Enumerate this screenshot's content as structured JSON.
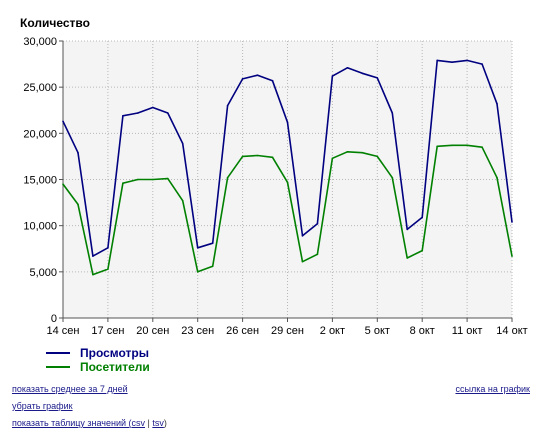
{
  "chart_data": {
    "type": "line",
    "ylabel": "Количество",
    "ylim": [
      0,
      30000
    ],
    "yticks": [
      "0",
      "5,000",
      "10,000",
      "15,000",
      "20,000",
      "25,000",
      "30,000"
    ],
    "ytick_values": [
      0,
      5000,
      10000,
      15000,
      20000,
      25000,
      30000
    ],
    "xtick_labels": [
      "14 сен",
      "17 сен",
      "20 сен",
      "23 сен",
      "26 сен",
      "29 сен",
      "2 окт",
      "5 окт",
      "8 окт",
      "11 окт",
      "14 окт"
    ],
    "x": [
      "14 сен",
      "15 сен",
      "16 сен",
      "17 сен",
      "18 сен",
      "19 сен",
      "20 сен",
      "21 сен",
      "22 сен",
      "23 сен",
      "24 сен",
      "25 сен",
      "26 сен",
      "27 сен",
      "28 сен",
      "29 сен",
      "30 сен",
      "1 окт",
      "2 окт",
      "3 окт",
      "4 окт",
      "5 окт",
      "6 окт",
      "7 окт",
      "8 окт",
      "9 окт",
      "10 окт",
      "11 окт",
      "12 окт",
      "13 окт",
      "14 окт"
    ],
    "grid": true,
    "legend_position": "bottom-left",
    "series": [
      {
        "name": "Просмотры",
        "color": "#000080",
        "values": [
          21300,
          17900,
          6700,
          7600,
          21900,
          22200,
          22800,
          22200,
          18900,
          7600,
          8100,
          23000,
          25900,
          26300,
          25700,
          21200,
          8900,
          10200,
          26200,
          27100,
          26500,
          26000,
          22200,
          9600,
          10900,
          27900,
          27700,
          27900,
          27500,
          23200,
          10400
        ]
      },
      {
        "name": "Посетители",
        "color": "#008000",
        "values": [
          14500,
          12300,
          4700,
          5300,
          14600,
          15000,
          15000,
          15100,
          12700,
          5000,
          5600,
          15200,
          17500,
          17600,
          17400,
          14700,
          6100,
          6900,
          17300,
          18000,
          17900,
          17500,
          15200,
          6500,
          7300,
          18600,
          18700,
          18700,
          18500,
          15200,
          6700
        ]
      }
    ]
  },
  "links": {
    "avg": "показать среднее за 7 дней",
    "remove": "убрать график",
    "table_prefix": "показать таблицу значений (",
    "csv": "csv",
    "sep": " | ",
    "tsv": "tsv",
    "table_suffix": ")",
    "chart_link": "ссылка на график"
  }
}
